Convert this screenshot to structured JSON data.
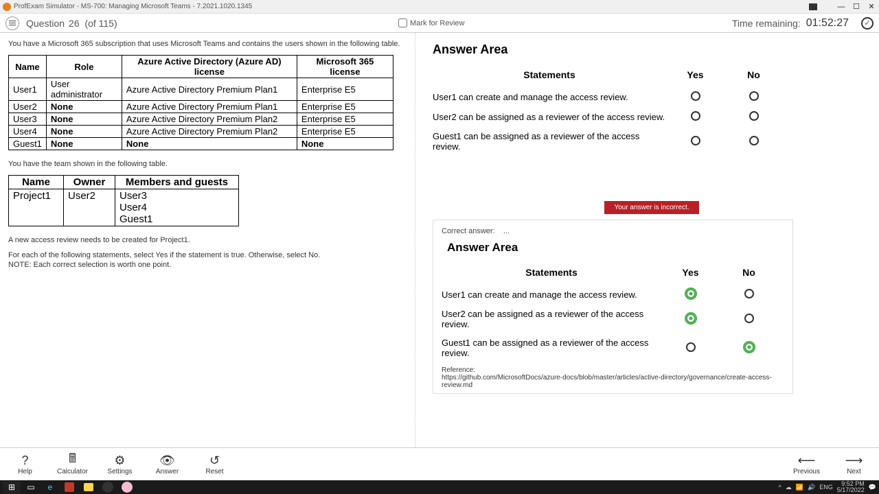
{
  "titlebar": {
    "text": "ProfExam Simulator - MS-700: Managing Microsoft Teams - 7.2021.1020.1345"
  },
  "toolbar": {
    "question_label": "Question",
    "question_num": "26",
    "question_total": "(of 115)",
    "mark_label": "Mark for Review",
    "time_label": "Time remaining:",
    "time_value": "01:52:27"
  },
  "question": {
    "intro": "You have a Microsoft 365 subscription that uses Microsoft Teams and contains the users shown in the following table.",
    "table1": {
      "headers": [
        "Name",
        "Role",
        "Azure Active Directory (Azure AD) license",
        "Microsoft 365 license"
      ],
      "rows": [
        [
          "User1",
          "User administrator",
          "Azure Active Directory Premium Plan1",
          "Enterprise E5"
        ],
        [
          "User2",
          "None",
          "Azure Active Directory Premium Plan1",
          "Enterprise E5"
        ],
        [
          "User3",
          "None",
          "Azure Active Directory Premium Plan2",
          "Enterprise E5"
        ],
        [
          "User4",
          "None",
          "Azure Active Directory Premium Plan2",
          "Enterprise E5"
        ],
        [
          "Guest1",
          "None",
          "None",
          "None"
        ]
      ]
    },
    "mid": "You have the team shown in the following table.",
    "table2": {
      "headers": [
        "Name",
        "Owner",
        "Members and guests"
      ],
      "rows": [
        [
          "Project1",
          "User2",
          "User3\nUser4\nGuest1"
        ]
      ]
    },
    "p1": "A new access review needs to be created for Project1.",
    "p2": "For each of the following statements, select Yes if the statement is true. Otherwise, select No.",
    "p3": "NOTE: Each correct selection is worth one point."
  },
  "answer_area": {
    "title": "Answer Area",
    "statements_h": "Statements",
    "yes_h": "Yes",
    "no_h": "No",
    "statements": [
      "User1 can create and manage the access review.",
      "User2 can be assigned as a reviewer of the access review.",
      "Guest1 can be assigned as a reviewer of the access review."
    ]
  },
  "feedback": {
    "incorrect": "Your answer is incorrect."
  },
  "correct": {
    "label": "Correct answer:",
    "ellipsis": "...",
    "title": "Answer Area",
    "answers": [
      {
        "yes": true,
        "no": false
      },
      {
        "yes": true,
        "no": false
      },
      {
        "yes": false,
        "no": true
      }
    ],
    "ref_label": "Reference:",
    "ref_url": "https://github.com/MicrosoftDocs/azure-docs/blob/master/articles/active-directory/governance/create-access-review.md"
  },
  "bottom": {
    "help": "Help",
    "calc": "Calculator",
    "settings": "Settings",
    "answer": "Answer",
    "reset": "Reset",
    "prev": "Previous",
    "next": "Next"
  },
  "taskbar": {
    "lang": "ENG",
    "time": "9:52 PM",
    "date": "5/17/2022"
  }
}
